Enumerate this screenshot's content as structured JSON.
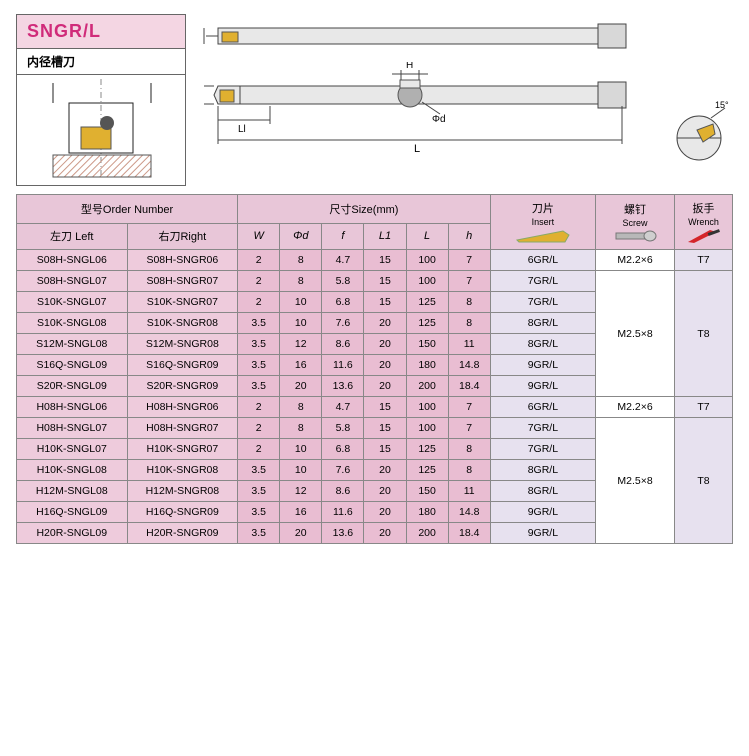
{
  "title": {
    "code": "SNGR/L",
    "subtitle": "内径槽刀"
  },
  "diagram_labels": {
    "H": "H",
    "phi_d": "Φd",
    "L": "L",
    "Ll": "Ll",
    "angle": "15°"
  },
  "colors": {
    "pink_header": "#e8c6d8",
    "pink_cell": "#eecbdc",
    "pink_cell2": "#e9bdd2",
    "lavender": "#e7e1ef",
    "insert_gold": "#e0b030",
    "wrench_red": "#d4252a",
    "steel": "#b8b8b8"
  },
  "headers": {
    "order_number": "型号Order Number",
    "size": "尺寸Size(mm)",
    "insert": "刀片",
    "insert_en": "Insert",
    "screw": "螺钉",
    "screw_en": "Screw",
    "wrench": "扳手",
    "wrench_en": "Wrench",
    "left": "左刀 Left",
    "right": "右刀Right",
    "W": "W",
    "phi_d": "Φd",
    "f": "f",
    "L1": "L1",
    "L": "L",
    "h": "h"
  },
  "rows": [
    {
      "left": "S08H-SNGL06",
      "right": "S08H-SNGR06",
      "W": "2",
      "d": "8",
      "f": "4.7",
      "L1": "15",
      "L": "100",
      "h": "7",
      "insert": "6GR/L"
    },
    {
      "left": "S08H-SNGL07",
      "right": "S08H-SNGR07",
      "W": "2",
      "d": "8",
      "f": "5.8",
      "L1": "15",
      "L": "100",
      "h": "7",
      "insert": "7GR/L"
    },
    {
      "left": "S10K-SNGL07",
      "right": "S10K-SNGR07",
      "W": "2",
      "d": "10",
      "f": "6.8",
      "L1": "15",
      "L": "125",
      "h": "8",
      "insert": "7GR/L"
    },
    {
      "left": "S10K-SNGL08",
      "right": "S10K-SNGR08",
      "W": "3.5",
      "d": "10",
      "f": "7.6",
      "L1": "20",
      "L": "125",
      "h": "8",
      "insert": "8GR/L"
    },
    {
      "left": "S12M-SNGL08",
      "right": "S12M-SNGR08",
      "W": "3.5",
      "d": "12",
      "f": "8.6",
      "L1": "20",
      "L": "150",
      "h": "11",
      "insert": "8GR/L"
    },
    {
      "left": "S16Q-SNGL09",
      "right": "S16Q-SNGR09",
      "W": "3.5",
      "d": "16",
      "f": "11.6",
      "L1": "20",
      "L": "180",
      "h": "14.8",
      "insert": "9GR/L"
    },
    {
      "left": "S20R-SNGL09",
      "right": "S20R-SNGR09",
      "W": "3.5",
      "d": "20",
      "f": "13.6",
      "L1": "20",
      "L": "200",
      "h": "18.4",
      "insert": "9GR/L"
    },
    {
      "left": "H08H-SNGL06",
      "right": "H08H-SNGR06",
      "W": "2",
      "d": "8",
      "f": "4.7",
      "L1": "15",
      "L": "100",
      "h": "7",
      "insert": "6GR/L"
    },
    {
      "left": "H08H-SNGL07",
      "right": "H08H-SNGR07",
      "W": "2",
      "d": "8",
      "f": "5.8",
      "L1": "15",
      "L": "100",
      "h": "7",
      "insert": "7GR/L"
    },
    {
      "left": "H10K-SNGL07",
      "right": "H10K-SNGR07",
      "W": "2",
      "d": "10",
      "f": "6.8",
      "L1": "15",
      "L": "125",
      "h": "8",
      "insert": "7GR/L"
    },
    {
      "left": "H10K-SNGL08",
      "right": "H10K-SNGR08",
      "W": "3.5",
      "d": "10",
      "f": "7.6",
      "L1": "20",
      "L": "125",
      "h": "8",
      "insert": "8GR/L"
    },
    {
      "left": "H12M-SNGL08",
      "right": "H12M-SNGR08",
      "W": "3.5",
      "d": "12",
      "f": "8.6",
      "L1": "20",
      "L": "150",
      "h": "11",
      "insert": "8GR/L"
    },
    {
      "left": "H16Q-SNGL09",
      "right": "H16Q-SNGR09",
      "W": "3.5",
      "d": "16",
      "f": "11.6",
      "L1": "20",
      "L": "180",
      "h": "14.8",
      "insert": "9GR/L"
    },
    {
      "left": "H20R-SNGL09",
      "right": "H20R-SNGR09",
      "W": "3.5",
      "d": "20",
      "f": "13.6",
      "L1": "20",
      "L": "200",
      "h": "18.4",
      "insert": "9GR/L"
    }
  ],
  "screw_groups": [
    {
      "rows": 1,
      "label": "M2.2×6"
    },
    {
      "rows": 6,
      "label": "M2.5×8"
    },
    {
      "rows": 1,
      "label": "M2.2×6"
    },
    {
      "rows": 6,
      "label": "M2.5×8"
    }
  ],
  "wrench_groups": [
    {
      "rows": 1,
      "label": "T7"
    },
    {
      "rows": 6,
      "label": "T8"
    },
    {
      "rows": 1,
      "label": "T7"
    },
    {
      "rows": 6,
      "label": "T8"
    }
  ]
}
